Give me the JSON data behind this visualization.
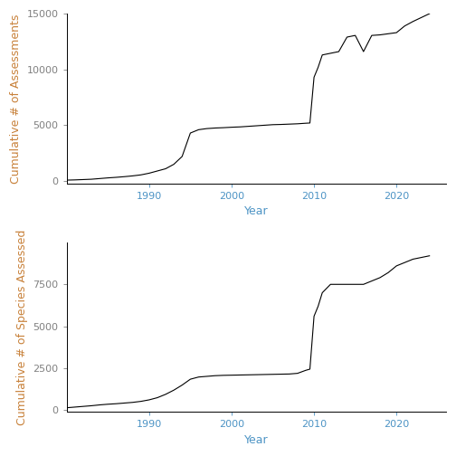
{
  "plot1": {
    "ylabel": "Cumulative # of Assessments",
    "xlabel": "Year",
    "ylim": [
      -200,
      15000
    ],
    "yticks": [
      0,
      5000,
      10000,
      15000
    ],
    "xlim": [
      1980,
      2026
    ],
    "xticks": [
      1990,
      2000,
      2010,
      2020
    ],
    "line_color": "#000000",
    "line_width": 0.8,
    "x": [
      1980,
      1981,
      1982,
      1983,
      1984,
      1985,
      1986,
      1987,
      1988,
      1989,
      1990,
      1991,
      1992,
      1993,
      1994,
      1995,
      1996,
      1997,
      1998,
      1999,
      2000,
      2001,
      2002,
      2003,
      2004,
      2005,
      2006,
      2007,
      2008,
      2009,
      2009.5,
      2010,
      2010.5,
      2011,
      2012,
      2013,
      2014,
      2015,
      2016,
      2017,
      2018,
      2019,
      2020,
      2021,
      2022,
      2023,
      2024
    ],
    "y": [
      80,
      100,
      130,
      160,
      220,
      280,
      330,
      390,
      460,
      550,
      700,
      900,
      1100,
      1500,
      2200,
      4300,
      4600,
      4700,
      4750,
      4780,
      4820,
      4850,
      4900,
      4950,
      5000,
      5050,
      5070,
      5100,
      5130,
      5180,
      5200,
      9300,
      10200,
      11300,
      11450,
      11600,
      12900,
      13050,
      11600,
      13050,
      13100,
      13200,
      13300,
      13900,
      14300,
      14650,
      15000
    ]
  },
  "plot2": {
    "ylabel": "Cumulative # of Species Assessed",
    "xlabel": "Year",
    "ylim": [
      -100,
      10000
    ],
    "yticks": [
      0,
      2500,
      5000,
      7500
    ],
    "xlim": [
      1980,
      2026
    ],
    "xticks": [
      1990,
      2000,
      2010,
      2020
    ],
    "line_color": "#000000",
    "line_width": 0.8,
    "x": [
      1980,
      1981,
      1982,
      1983,
      1984,
      1985,
      1986,
      1987,
      1988,
      1989,
      1990,
      1991,
      1992,
      1993,
      1994,
      1995,
      1996,
      1997,
      1998,
      1999,
      2000,
      2001,
      2002,
      2003,
      2004,
      2005,
      2006,
      2007,
      2008,
      2009,
      2009.5,
      2010,
      2010.5,
      2011,
      2012,
      2013,
      2014,
      2015,
      2016,
      2017,
      2018,
      2019,
      2020,
      2021,
      2022,
      2023,
      2024
    ],
    "y": [
      150,
      190,
      230,
      270,
      320,
      360,
      390,
      430,
      470,
      530,
      620,
      750,
      950,
      1200,
      1500,
      1850,
      1980,
      2020,
      2060,
      2080,
      2090,
      2100,
      2110,
      2120,
      2130,
      2140,
      2150,
      2160,
      2200,
      2380,
      2450,
      5600,
      6200,
      7000,
      7500,
      7500,
      7500,
      7500,
      7500,
      7700,
      7900,
      8200,
      8600,
      8800,
      9000,
      9100,
      9200
    ]
  },
  "background_color": "#ffffff",
  "xtick_color": "#4d94c5",
  "yaxis_label_color": "#c8813a",
  "xaxis_label_color": "#4d94c5",
  "spine_color": "#000000",
  "tick_color": "#808080",
  "label_fontsize": 9,
  "tick_fontsize": 8
}
